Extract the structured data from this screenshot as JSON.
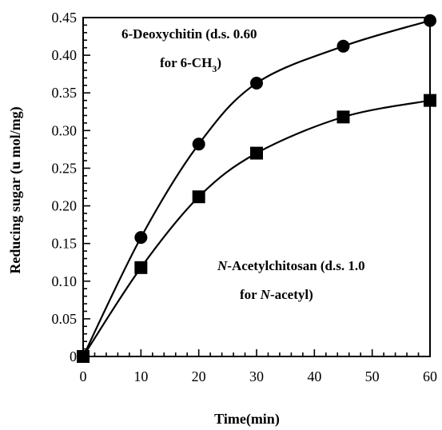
{
  "chart_data": {
    "type": "line",
    "xlabel": "Time(min)",
    "ylabel": "Reducing sugar (u mol/mg)",
    "xlim": [
      0,
      60
    ],
    "ylim": [
      0,
      0.45
    ],
    "x_ticks": [
      0,
      10,
      20,
      30,
      40,
      50,
      60
    ],
    "x_tick_labels": [
      "0",
      "10",
      "20",
      "30",
      "40",
      "50",
      "60"
    ],
    "y_ticks": [
      0,
      0.05,
      0.1,
      0.15,
      0.2,
      0.25,
      0.3,
      0.35,
      0.4,
      0.45
    ],
    "y_tick_labels": [
      "0",
      "0.05",
      "0.10",
      "0.15",
      "0.20",
      "0.25",
      "0.30",
      "0.35",
      "0.40",
      "0.45"
    ],
    "grid": false,
    "series": [
      {
        "marker": "circle",
        "x": [
          0,
          10,
          20,
          30,
          45,
          60
        ],
        "y": [
          0,
          0.158,
          0.282,
          0.363,
          0.412,
          0.446
        ]
      },
      {
        "marker": "square",
        "x": [
          0,
          10,
          20,
          30,
          45,
          60
        ],
        "y": [
          0,
          0.118,
          0.212,
          0.27,
          0.318,
          0.34
        ]
      }
    ],
    "annotations": {
      "deoxy_line1": "6-Deoxychitin (d.s. 0.60",
      "deoxy_line2_pre": "for 6-CH",
      "deoxy_line2_sub": "3",
      "deoxy_line2_post": ")",
      "acetyl_line1_italic": "N",
      "acetyl_line1_rest": "-Acetylchitosan (d.s. 1.0",
      "acetyl_line2_pre": "for ",
      "acetyl_line2_italic": "N",
      "acetyl_line2_rest": "-acetyl)"
    }
  }
}
